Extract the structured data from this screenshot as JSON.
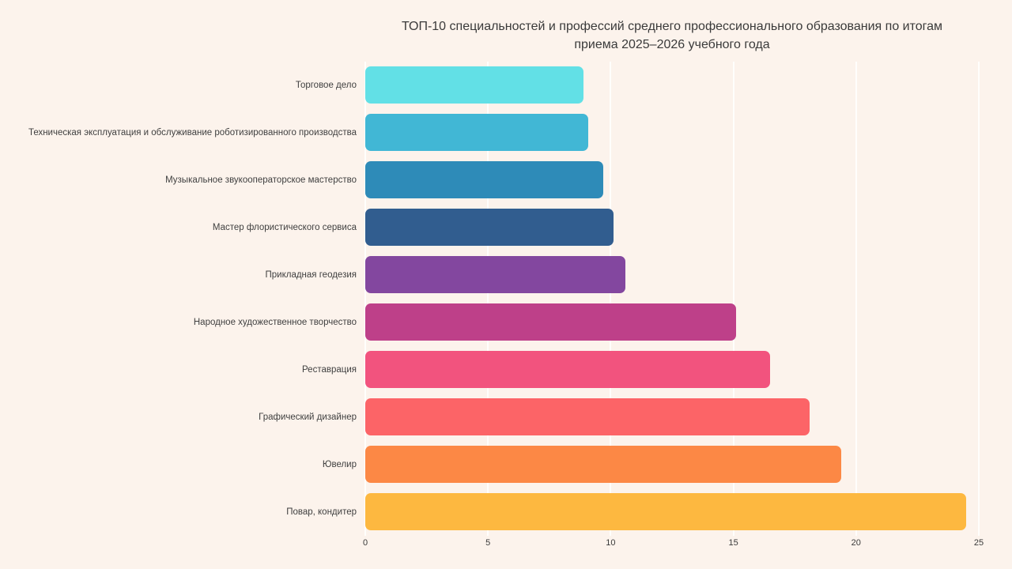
{
  "colors": {
    "background": "#FCF3EC",
    "gridline": "rgba(255,255,255,0.85)",
    "text": "#3A3A3A"
  },
  "title_line1": "ТОП-10 специальностей и профессий среднего профессионального образования по итогам",
  "title_line2": "приема 2025–2026 учебного года",
  "chart_data": {
    "type": "bar",
    "orientation": "horizontal",
    "title": "ТОП-10 специальностей и профессий среднего профессионального образования по итогам приема 2025–2026 учебного года",
    "categories": [
      "Торговое дело",
      "Техническая эксплуатация и обслуживание роботизированного производства",
      "Музыкальное звукооператорское мастерство",
      "Мастер флористического сервиса",
      "Прикладная геодезия",
      "Народное художественное творчество",
      "Реставрация",
      "Графический дизайнер",
      "Ювелир",
      "Повар, кондитер"
    ],
    "values": [
      8.9,
      9.1,
      9.7,
      10.1,
      10.6,
      15.1,
      16.5,
      18.1,
      19.4,
      24.5
    ],
    "bar_colors": [
      "#62E0E6",
      "#41B7D5",
      "#2E8BB8",
      "#315D8F",
      "#83479F",
      "#BE4089",
      "#F2537E",
      "#FC6467",
      "#FC8845",
      "#FDB840"
    ],
    "xlabel": "",
    "ylabel": "",
    "xlim": [
      0,
      25
    ],
    "xticks": [
      0,
      5,
      10,
      15,
      20,
      25
    ],
    "grid": true,
    "legend": false
  }
}
